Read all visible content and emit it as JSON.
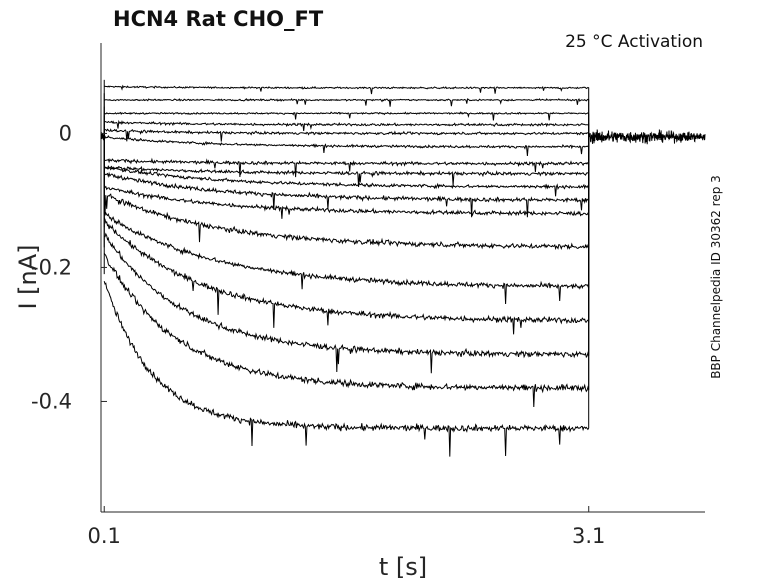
{
  "chart_data": {
    "type": "line",
    "title": "HCN4  Rat  CHO_FT",
    "annotation": "25 °C  Activation",
    "side_label": "BBP Channelpedia ID 30362 rep 3",
    "xlabel": "t [s]",
    "ylabel": "I [nA]",
    "xlim": [
      0.08,
      3.82
    ],
    "ylim": [
      -0.565,
      0.135
    ],
    "xticks": [
      {
        "value": 0.1,
        "label": "0.1"
      },
      {
        "value": 3.1,
        "label": "3.1"
      }
    ],
    "yticks": [
      {
        "value": 0,
        "label": "0"
      },
      {
        "value": -0.2,
        "label": "-0.2"
      },
      {
        "value": -0.4,
        "label": "-0.4"
      }
    ],
    "grid": false,
    "legend": "none",
    "line_color": "#000000",
    "baseline_segments": {
      "pre": [
        0.08,
        0.1
      ],
      "post": [
        3.1,
        3.82
      ],
      "level": -0.005
    },
    "step_window": [
      0.1,
      3.1
    ],
    "series": [
      {
        "start": 0.07,
        "plateau": 0.068,
        "tau": 0.5,
        "noise": 0.002
      },
      {
        "start": 0.05,
        "plateau": 0.05,
        "tau": 0.5,
        "noise": 0.002
      },
      {
        "start": 0.03,
        "plateau": 0.03,
        "tau": 0.5,
        "noise": 0.002
      },
      {
        "start": 0.017,
        "plateau": 0.013,
        "tau": 0.5,
        "noise": 0.003
      },
      {
        "start": 0.005,
        "plateau": 0.0,
        "tau": 0.5,
        "noise": 0.003
      },
      {
        "start": -0.005,
        "plateau": -0.02,
        "tau": 0.6,
        "noise": 0.003
      },
      {
        "start": -0.04,
        "plateau": -0.045,
        "tau": 0.6,
        "noise": 0.004
      },
      {
        "start": -0.05,
        "plateau": -0.06,
        "tau": 0.6,
        "noise": 0.004
      },
      {
        "start": -0.05,
        "plateau": -0.08,
        "tau": 0.7,
        "noise": 0.004
      },
      {
        "start": -0.06,
        "plateau": -0.1,
        "tau": 0.7,
        "noise": 0.005
      },
      {
        "start": -0.08,
        "plateau": -0.12,
        "tau": 0.7,
        "noise": 0.005
      },
      {
        "start": -0.09,
        "plateau": -0.17,
        "tau": 0.7,
        "noise": 0.006
      },
      {
        "start": -0.12,
        "plateau": -0.23,
        "tau": 0.7,
        "noise": 0.006
      },
      {
        "start": -0.13,
        "plateau": -0.28,
        "tau": 0.6,
        "noise": 0.007
      },
      {
        "start": -0.15,
        "plateau": -0.33,
        "tau": 0.5,
        "noise": 0.007
      },
      {
        "start": -0.18,
        "plateau": -0.38,
        "tau": 0.45,
        "noise": 0.008
      },
      {
        "start": -0.22,
        "plateau": -0.44,
        "tau": 0.3,
        "noise": 0.008
      }
    ]
  }
}
